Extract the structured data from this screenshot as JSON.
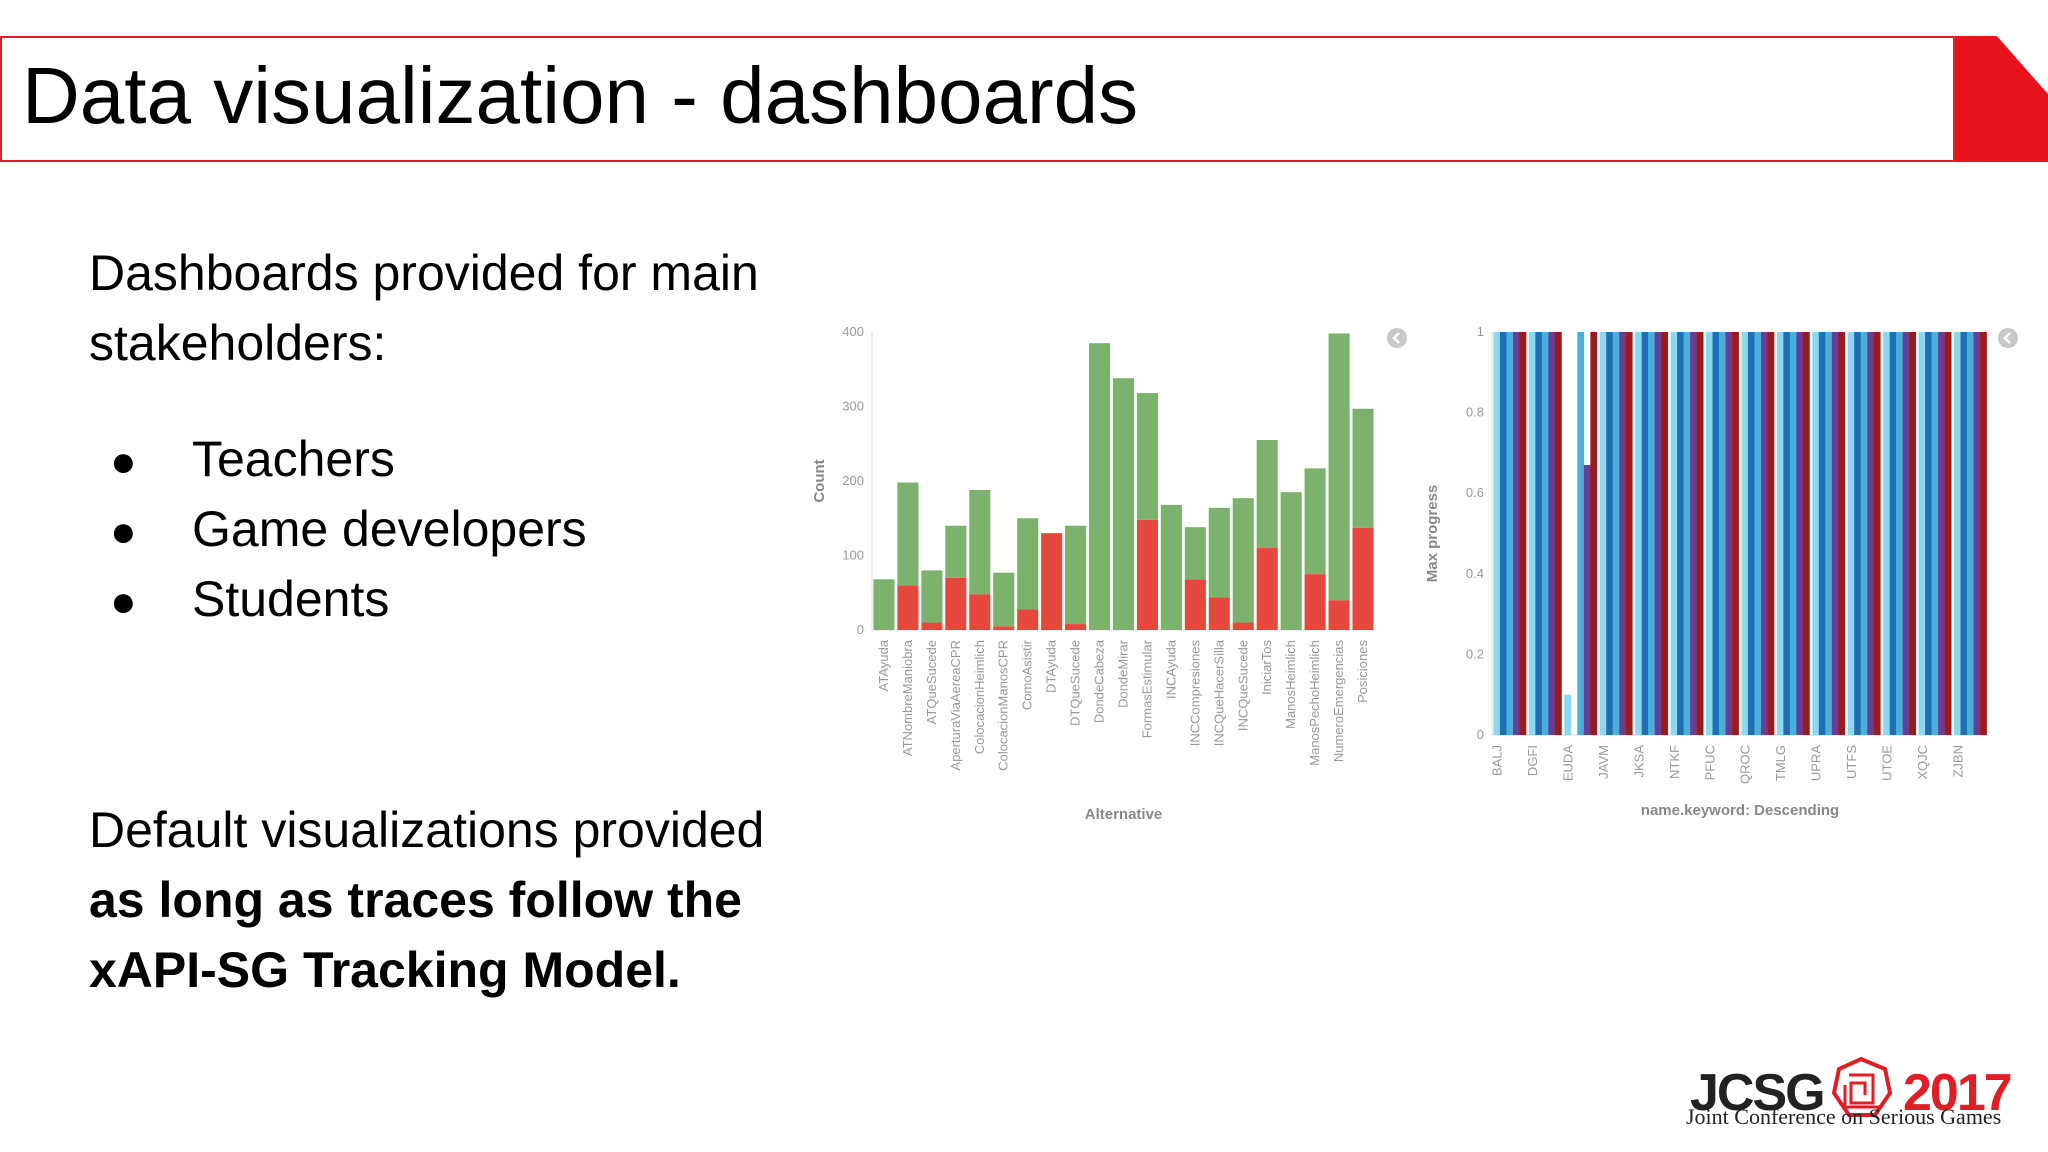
{
  "slide": {
    "title": "Data visualization - dashboards",
    "intro": "Dashboards provided for main stakeholders:",
    "bullets": [
      "Teachers",
      "Game developers",
      "Students"
    ],
    "bullet_symbol": "●",
    "default_text_plain": "Default visualizations provided",
    "default_text_bold": "as long as traces follow the xAPI-SG Tracking Model."
  },
  "logo": {
    "text_left": "JCSG",
    "text_right": "2017",
    "caption": "Joint Conference on Serious Games",
    "colors": {
      "dark": "#222222",
      "red": "#e01e26"
    }
  },
  "colors": {
    "accent": "#e01e26",
    "green": "#7cb26d",
    "red": "#e5483f"
  },
  "chart_data": [
    {
      "type": "bar",
      "stacked": true,
      "xlabel": "Alternative",
      "ylabel": "Count",
      "ylim": [
        0,
        400
      ],
      "yticks": [
        0,
        100,
        200,
        300,
        400
      ],
      "grid": false,
      "categories": [
        "ATAyuda",
        "ATNombreManiobra",
        "ATQueSucede",
        "AperturaViaAereaCPR",
        "ColocacionHeimlich",
        "ColocacionManosCPR",
        "ComoAsistir",
        "DTAyuda",
        "DTQueSucede",
        "DondeCabeza",
        "DondeMirar",
        "FormasEstimular",
        "INCAyuda",
        "INCCompresiones",
        "INCQueHacerSilla",
        "INCQueSucede",
        "IniciarTos",
        "ManosHeimlich",
        "ManosPechoHeimlich",
        "NumeroEmergencias",
        "Posiciones"
      ],
      "series": [
        {
          "color": "#e5483f",
          "values": [
            0,
            60,
            10,
            70,
            48,
            5,
            28,
            130,
            8,
            0,
            0,
            148,
            0,
            68,
            44,
            10,
            110,
            0,
            75,
            40,
            137
          ]
        },
        {
          "color": "#7cb26d",
          "values": [
            68,
            138,
            70,
            70,
            140,
            72,
            122,
            0,
            132,
            385,
            338,
            170,
            168,
            70,
            120,
            167,
            145,
            185,
            142,
            358,
            160
          ]
        }
      ],
      "icon": "info-circle-icon"
    },
    {
      "type": "bar",
      "grouped": true,
      "xlabel": "name.keyword: Descending",
      "ylabel": "Max progress",
      "ylim": [
        0,
        1
      ],
      "yticks": [
        0,
        0.2,
        0.4,
        0.6,
        0.8,
        1
      ],
      "grid": false,
      "categories": [
        "BALJ",
        "DGFI",
        "EUDA",
        "JAVM",
        "JKSA",
        "NTKF",
        "PFUC",
        "QROC",
        "TMLG",
        "UPRA",
        "UTFS",
        "UTOE",
        "XQJC",
        "ZJBN"
      ],
      "series_colors": [
        "#8ed8f0",
        "#1f6fb4",
        "#49b0dc",
        "#6a3e94",
        "#9c1a1a"
      ],
      "values": [
        [
          1,
          1,
          1,
          1,
          1
        ],
        [
          1,
          1,
          1,
          1,
          1
        ],
        [
          0.1,
          0,
          1,
          0.67,
          1
        ],
        [
          1,
          1,
          1,
          1,
          1
        ],
        [
          1,
          1,
          1,
          1,
          1
        ],
        [
          1,
          1,
          1,
          1,
          1
        ],
        [
          1,
          1,
          1,
          1,
          1
        ],
        [
          1,
          1,
          1,
          1,
          1
        ],
        [
          1,
          1,
          1,
          1,
          1
        ],
        [
          1,
          1,
          1,
          1,
          1
        ],
        [
          1,
          1,
          1,
          1,
          1
        ],
        [
          1,
          1,
          1,
          1,
          1
        ],
        [
          1,
          1,
          1,
          1,
          1
        ],
        [
          1,
          1,
          1,
          1,
          1
        ]
      ],
      "icon": "info-circle-icon"
    }
  ]
}
